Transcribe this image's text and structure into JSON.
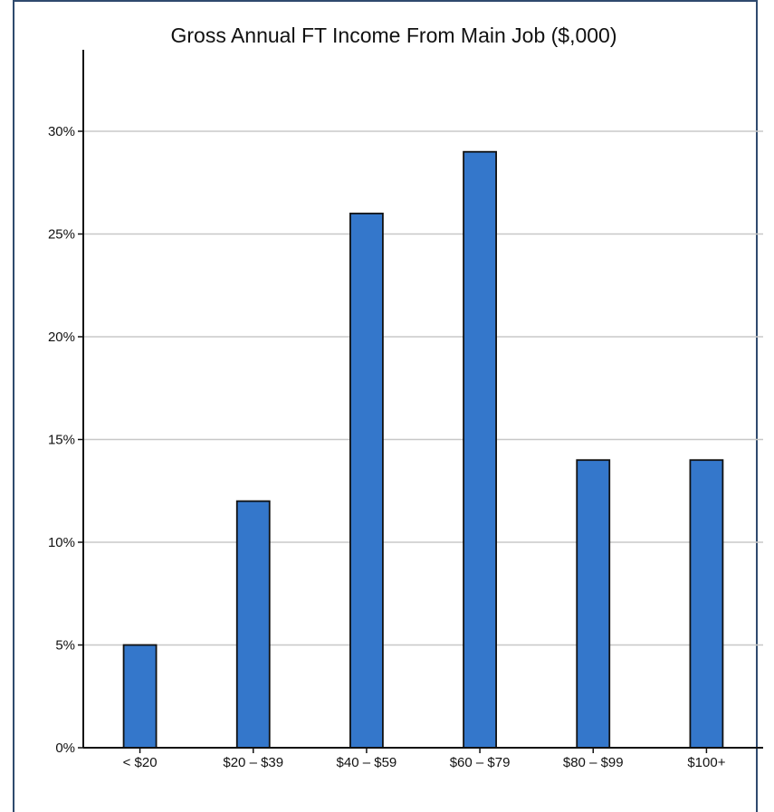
{
  "chart_data": {
    "type": "bar",
    "title": "Gross Annual FT Income From Main Job ($,000)",
    "categories": [
      "< $20",
      "$20 – $39",
      "$40 – $59",
      "$60 – $79",
      "$80 – $99",
      "$100+"
    ],
    "values": [
      5,
      12,
      26,
      29,
      14,
      14
    ],
    "y_ticks": [
      "0%",
      "5%",
      "10%",
      "15%",
      "20%",
      "25%",
      "30%"
    ],
    "ylim": [
      0,
      34
    ],
    "grid": true,
    "colors": {
      "bar": "#3477cb",
      "bar_edge": "#111111",
      "grid": "#c8c8c8",
      "frame": "#2f4a6e"
    }
  }
}
